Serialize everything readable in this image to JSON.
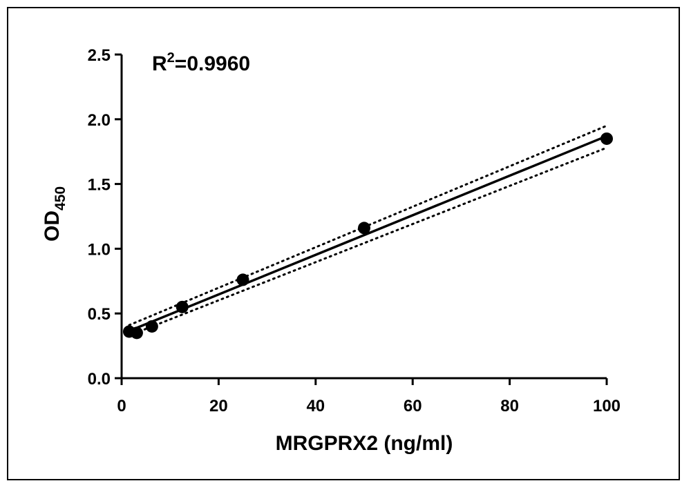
{
  "chart_data": {
    "type": "scatter",
    "xlabel": "MRGPRX2 (ng/ml)",
    "ylabel": {
      "main": "OD",
      "subscript": "450"
    },
    "annotation": {
      "base": "R",
      "superscript": "2",
      "rest": "=0.9960"
    },
    "xlim": [
      0,
      100
    ],
    "ylim": [
      0,
      2.5
    ],
    "x_ticks": [
      "0",
      "20",
      "40",
      "60",
      "80",
      "100"
    ],
    "y_ticks": [
      "0.0",
      "0.5",
      "1.0",
      "1.5",
      "2.0",
      "2.5"
    ],
    "grid": false,
    "points": [
      {
        "x": 1.56,
        "y": 0.36
      },
      {
        "x": 3.125,
        "y": 0.35
      },
      {
        "x": 6.25,
        "y": 0.4
      },
      {
        "x": 12.5,
        "y": 0.55
      },
      {
        "x": 25,
        "y": 0.76
      },
      {
        "x": 50,
        "y": 1.16
      },
      {
        "x": 100,
        "y": 1.85
      }
    ],
    "fit_line": {
      "start": [
        1.56,
        0.365
      ],
      "end": [
        100,
        1.87
      ]
    },
    "confidence_band": {
      "upper": {
        "start": [
          1.56,
          0.41
        ],
        "end": [
          100,
          1.95
        ]
      },
      "lower": {
        "start": [
          1.56,
          0.33
        ],
        "end": [
          100,
          1.78
        ]
      }
    },
    "colors": {
      "points": "#000000",
      "line": "#000000",
      "band": "#000000"
    }
  }
}
